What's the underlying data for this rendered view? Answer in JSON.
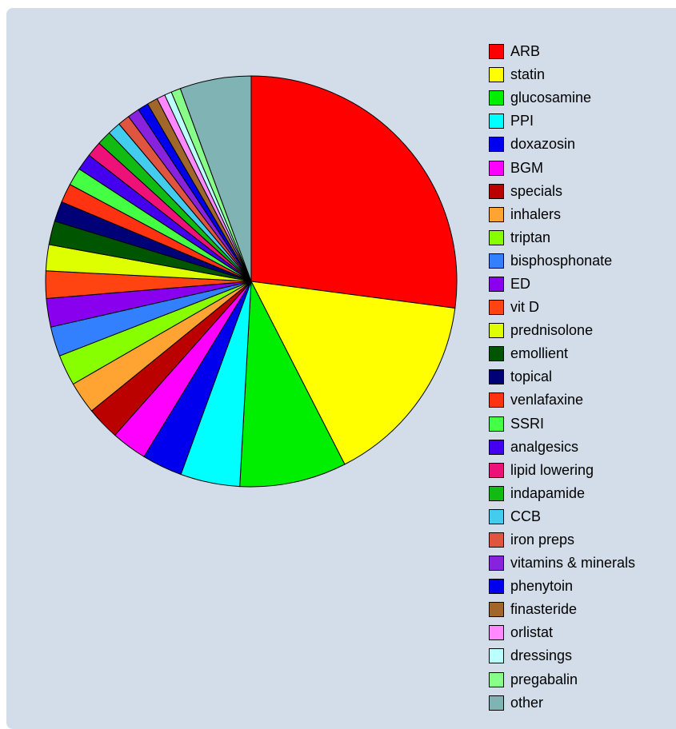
{
  "chart_data": {
    "type": "pie",
    "title": "",
    "legend_position": "right",
    "start_angle_deg": 0,
    "direction": "clockwise",
    "slices": [
      {
        "label": "ARB",
        "value": 29.0,
        "color": "#ff0000"
      },
      {
        "label": "statin",
        "value": 16.5,
        "color": "#ffff00"
      },
      {
        "label": "glucosamine",
        "value": 9.0,
        "color": "#00ee00"
      },
      {
        "label": "PPI",
        "value": 5.0,
        "color": "#00ffff"
      },
      {
        "label": "doxazosin",
        "value": 3.4,
        "color": "#0000ee"
      },
      {
        "label": "BGM",
        "value": 3.0,
        "color": "#ff00ff"
      },
      {
        "label": "specials",
        "value": 2.8,
        "color": "#bb0000"
      },
      {
        "label": "inhalers",
        "value": 2.7,
        "color": "#ffa333"
      },
      {
        "label": "triptan",
        "value": 2.6,
        "color": "#88ff00"
      },
      {
        "label": "bisphosphonate",
        "value": 2.5,
        "color": "#3380ff"
      },
      {
        "label": "ED",
        "value": 2.4,
        "color": "#8800ee"
      },
      {
        "label": "vit D",
        "value": 2.3,
        "color": "#ff4411"
      },
      {
        "label": "prednisolone",
        "value": 2.2,
        "color": "#ddff00"
      },
      {
        "label": "emollient",
        "value": 2.0,
        "color": "#005500"
      },
      {
        "label": "topical",
        "value": 1.7,
        "color": "#000077"
      },
      {
        "label": "venlafaxine",
        "value": 1.6,
        "color": "#ff3311"
      },
      {
        "label": "SSRI",
        "value": 1.5,
        "color": "#44ff44"
      },
      {
        "label": "analgesics",
        "value": 1.4,
        "color": "#4400ee"
      },
      {
        "label": "lipid lowering",
        "value": 1.3,
        "color": "#ee1177"
      },
      {
        "label": "indapamide",
        "value": 1.2,
        "color": "#11bb11"
      },
      {
        "label": "CCB",
        "value": 1.1,
        "color": "#44ccee"
      },
      {
        "label": "iron preps",
        "value": 1.0,
        "color": "#e05540"
      },
      {
        "label": "vitamins & minerals",
        "value": 1.0,
        "color": "#8822dd"
      },
      {
        "label": "phenytoin",
        "value": 0.9,
        "color": "#0000ee"
      },
      {
        "label": "finasteride",
        "value": 0.9,
        "color": "#a0662a"
      },
      {
        "label": "orlistat",
        "value": 0.7,
        "color": "#ff88ff"
      },
      {
        "label": "dressings",
        "value": 0.6,
        "color": "#bbffff"
      },
      {
        "label": "pregabalin",
        "value": 0.8,
        "color": "#88ff88"
      },
      {
        "label": "other",
        "value": 6.0,
        "color": "#80b3b3"
      }
    ]
  }
}
